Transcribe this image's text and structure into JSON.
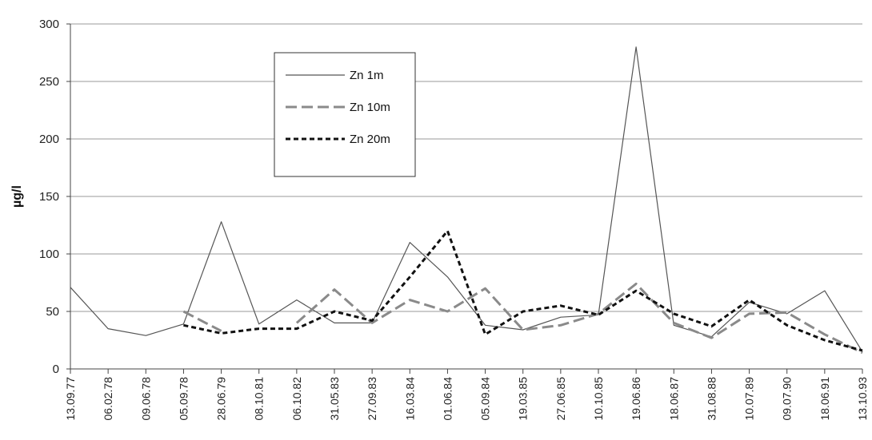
{
  "chart_data": {
    "type": "line",
    "title": "",
    "xlabel": "",
    "ylabel": "µg/l",
    "ylim": [
      0,
      300
    ],
    "yticks": [
      0,
      50,
      100,
      150,
      200,
      250,
      300
    ],
    "grid": true,
    "legend_position": "top-center",
    "categories": [
      "13.09.77",
      "06.02.78",
      "09.06.78",
      "05.09.78",
      "28.06.79",
      "08.10.81",
      "06.10.82",
      "31.05.83",
      "27.09.83",
      "16.03.84",
      "01.06.84",
      "05.09.84",
      "19.03.85",
      "27.06.85",
      "10.10.85",
      "19.06.86",
      "18.06.87",
      "31.08.88",
      "10.07.89",
      "09.07.90",
      "18.06.91",
      "13.10.93"
    ],
    "series": [
      {
        "name": "Zn 1m",
        "style": "solid",
        "color": "#555555",
        "values": [
          71,
          35,
          29,
          39,
          128,
          39,
          60,
          40,
          40,
          110,
          80,
          38,
          34,
          45,
          47,
          280,
          38,
          28,
          58,
          48,
          68,
          15
        ]
      },
      {
        "name": "Zn 10m",
        "style": "dashed-gray",
        "color": "#8a8a8a",
        "values": [
          null,
          null,
          null,
          50,
          33,
          null,
          40,
          69,
          40,
          60,
          50,
          70,
          34,
          38,
          48,
          74,
          40,
          27,
          48,
          49,
          30,
          14
        ]
      },
      {
        "name": "Zn 20m",
        "style": "dotted-black",
        "color": "#111111",
        "values": [
          null,
          null,
          null,
          38,
          31,
          35,
          35,
          50,
          42,
          80,
          120,
          30,
          50,
          55,
          47,
          68,
          48,
          37,
          60,
          38,
          25,
          16
        ]
      }
    ]
  }
}
